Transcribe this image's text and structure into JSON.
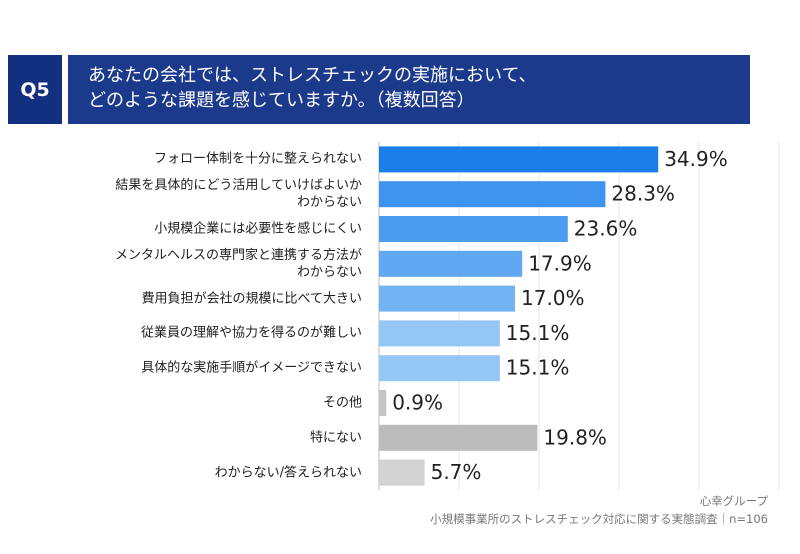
{
  "chart_data": {
    "type": "barh",
    "question": "Q5",
    "title": "あなたの会社では、ストレスチェックの実施において、\nどのような課題を感じていますか。（複数回答）",
    "categories": [
      "フォロー体制を十分に整えられない",
      "結果を具体的にどう活用していけばよいか\nわからない",
      "小規模企業には必要性を感じにくい",
      "メンタルヘルスの専門家と連携する方法が\nわからない",
      "費用負担が会社の規模に比べて大きい",
      "従業員の理解や協力を得るのが難しい",
      "具体的な実施手順がイメージできない",
      "その他",
      "特にない",
      "わからない/答えられない"
    ],
    "values": [
      34.9,
      28.3,
      23.6,
      17.9,
      17.0,
      15.1,
      15.1,
      0.9,
      19.8,
      5.7
    ],
    "value_labels": [
      "34.9%",
      "28.3%",
      "23.6%",
      "17.9%",
      "17.0%",
      "15.1%",
      "15.1%",
      "0.9%",
      "19.8%",
      "5.7%"
    ],
    "colors": [
      "#1a7fe8",
      "#3d93ee",
      "#4c9df0",
      "#60a9f2",
      "#72b3f3",
      "#94c6f6",
      "#94c6f6",
      "#c4c4c4",
      "#bcbcbc",
      "#d3d3d3"
    ],
    "xlim": [
      0,
      50
    ],
    "xticks": [
      0,
      10,
      20,
      30,
      40,
      50
    ],
    "grid": true,
    "source": "心幸グループ",
    "note": "小規模事業所のストレスチェック対応に関する実態調査｜n=106"
  }
}
